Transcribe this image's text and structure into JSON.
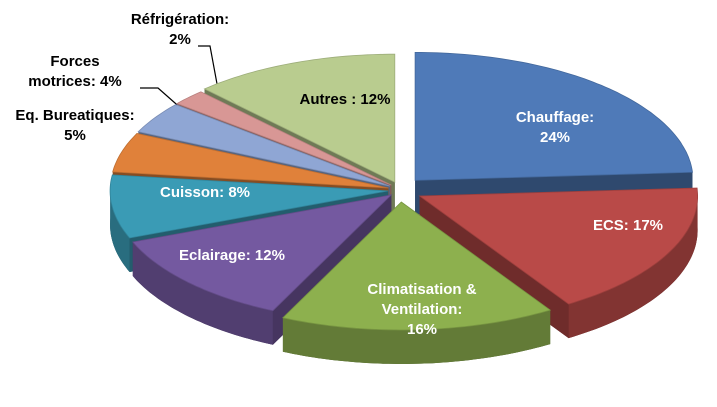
{
  "chart_data": {
    "type": "pie",
    "categories": [
      "Chauffage:",
      "ECS:",
      "Climatisation & Ventilation:",
      "Eclairage:",
      "Cuisson:",
      "Eq. Bureatiques:",
      "Forces motrices:",
      "Réfrigération:",
      "Autres :"
    ],
    "values": [
      24,
      17,
      16,
      12,
      8,
      5,
      4,
      2,
      12
    ],
    "value_labels": [
      "24%",
      "17%",
      "16%",
      "12%",
      "8%",
      "5%",
      "4%",
      "2%",
      "12%"
    ],
    "colors": [
      "#4f7ab8",
      "#b94a48",
      "#8db04e",
      "#7459a0",
      "#3a9bb5",
      "#e0813a",
      "#8fa6d4",
      "#d89795",
      "#b9cc8f"
    ]
  }
}
